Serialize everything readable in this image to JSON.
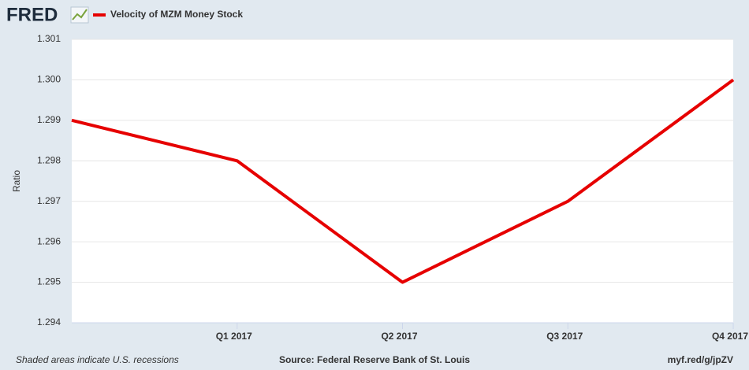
{
  "logo": "FRED",
  "footer": {
    "note": "Shaded areas indicate U.S. recessions",
    "source": "Source: Federal Reserve Bank of St. Louis",
    "link": "myf.red/g/jpZV"
  },
  "chart_data": {
    "type": "line",
    "categories": [
      null,
      "Q1 2017",
      "Q2 2017",
      "Q3 2017",
      "Q4 2017"
    ],
    "series": [
      {
        "name": "Velocity of MZM Money Stock",
        "color": "#e60000",
        "values": [
          1.299,
          1.298,
          1.295,
          1.297,
          1.3
        ]
      }
    ],
    "ylabel": "Ratio",
    "ylim": [
      1.294,
      1.301
    ],
    "yticks": [
      1.294,
      1.295,
      1.296,
      1.297,
      1.298,
      1.299,
      {
        "value": 1.3,
        "label": "1.300"
      },
      1.301
    ],
    "grid": true
  }
}
